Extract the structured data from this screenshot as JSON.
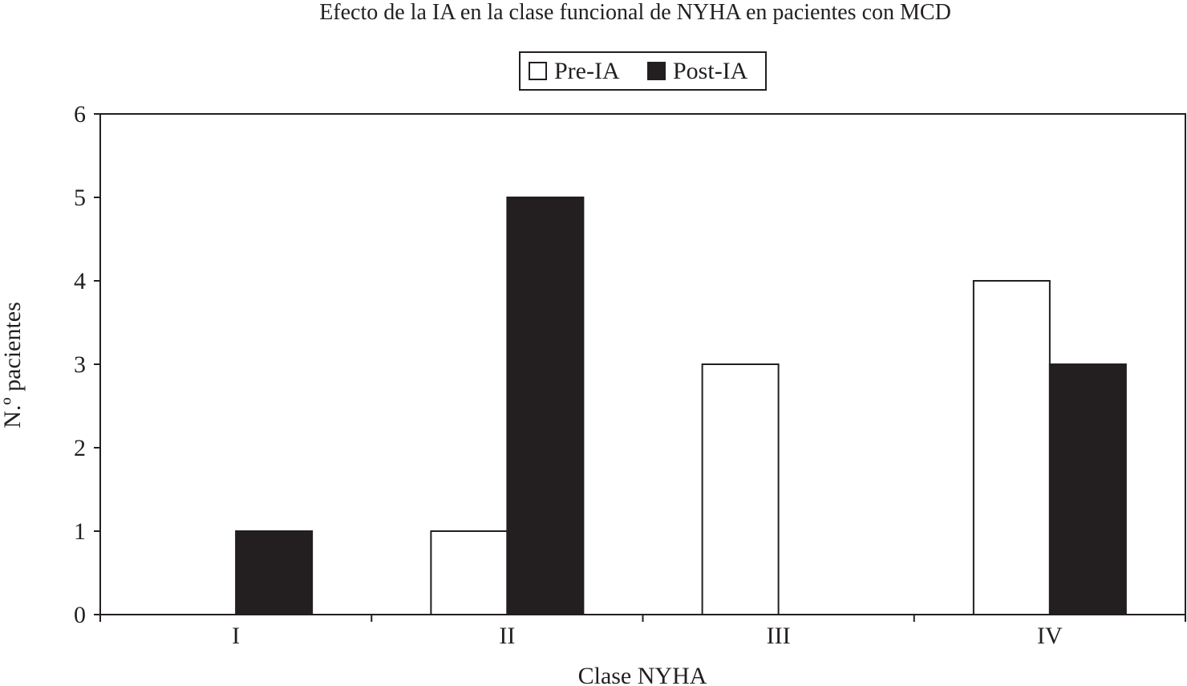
{
  "chart_data": {
    "type": "bar",
    "title": "Efecto de la IA en la clase funcional de NYHA en pacientes con MCD",
    "xlabel": "Clase NYHA",
    "ylabel": "N.º pacientes",
    "categories": [
      "I",
      "II",
      "III",
      "IV"
    ],
    "series": [
      {
        "name": "Pre-IA",
        "values": [
          0,
          1,
          3,
          4
        ],
        "color": "#ffffff"
      },
      {
        "name": "Post-IA",
        "values": [
          1,
          5,
          0,
          3
        ],
        "color": "#231f20"
      }
    ],
    "ylim": [
      0,
      6
    ],
    "yticks": [
      0,
      1,
      2,
      3,
      4,
      5,
      6
    ],
    "grid": false,
    "legend_position": "top-center"
  }
}
